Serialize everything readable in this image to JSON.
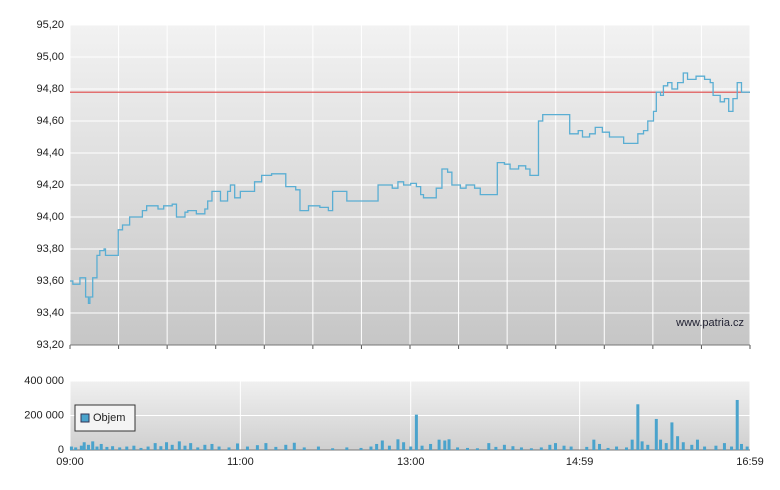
{
  "chart_data": [
    {
      "type": "line",
      "x": [
        "09:00",
        "09:02",
        "09:07",
        "09:11",
        "09:13",
        "09:14",
        "09:16",
        "09:19",
        "09:21",
        "09:24",
        "09:25",
        "09:34",
        "09:37",
        "09:42",
        "09:51",
        "09:54",
        "10:02",
        "10:06",
        "10:12",
        "10:15",
        "10:21",
        "10:23",
        "10:29",
        "10:35",
        "10:37",
        "10:40",
        "10:46",
        "10:51",
        "10:53",
        "10:56",
        "11:00",
        "11:07",
        "11:10",
        "11:15",
        "11:22",
        "11:30",
        "11:32",
        "11:36",
        "11:39",
        "11:42",
        "11:48",
        "11:56",
        "12:02",
        "12:05",
        "12:10",
        "12:15",
        "12:24",
        "12:35",
        "12:37",
        "12:43",
        "12:47",
        "12:51",
        "12:55",
        "13:00",
        "13:04",
        "13:07",
        "13:09",
        "13:18",
        "13:22",
        "13:26",
        "13:29",
        "13:35",
        "13:39",
        "13:45",
        "13:49",
        "13:59",
        "14:01",
        "14:06",
        "14:10",
        "14:16",
        "14:21",
        "14:24",
        "14:28",
        "14:30",
        "14:33",
        "14:45",
        "14:51",
        "14:52",
        "14:58",
        "15:01",
        "15:06",
        "15:10",
        "15:15",
        "15:20",
        "15:26",
        "15:30",
        "15:36",
        "15:40",
        "15:44",
        "15:47",
        "15:51",
        "15:53",
        "15:56",
        "15:58",
        "16:01",
        "16:04",
        "16:08",
        "16:12",
        "16:15",
        "16:21",
        "16:27",
        "16:31",
        "16:33",
        "16:38",
        "16:41",
        "16:44",
        "16:47",
        "16:50",
        "16:53",
        "16:59"
      ],
      "values": [
        93.6,
        93.58,
        93.62,
        93.5,
        93.46,
        93.5,
        93.62,
        93.76,
        93.79,
        93.8,
        93.76,
        93.92,
        93.95,
        94.0,
        94.04,
        94.07,
        94.05,
        94.07,
        94.08,
        94.0,
        94.03,
        94.04,
        94.02,
        94.05,
        94.1,
        94.16,
        94.1,
        94.16,
        94.2,
        94.12,
        94.16,
        94.16,
        94.22,
        94.26,
        94.27,
        94.27,
        94.19,
        94.19,
        94.17,
        94.04,
        94.07,
        94.06,
        94.04,
        94.16,
        94.16,
        94.1,
        94.1,
        94.1,
        94.2,
        94.2,
        94.18,
        94.22,
        94.2,
        94.21,
        94.19,
        94.14,
        94.12,
        94.18,
        94.3,
        94.28,
        94.2,
        94.18,
        94.2,
        94.18,
        94.14,
        94.14,
        94.34,
        94.33,
        94.3,
        94.32,
        94.3,
        94.26,
        94.26,
        94.6,
        94.64,
        94.64,
        94.64,
        94.52,
        94.54,
        94.5,
        94.52,
        94.56,
        94.53,
        94.5,
        94.5,
        94.46,
        94.46,
        94.52,
        94.54,
        94.6,
        94.66,
        94.78,
        94.76,
        94.82,
        94.84,
        94.8,
        94.84,
        94.9,
        94.86,
        94.88,
        94.86,
        94.84,
        94.76,
        94.72,
        94.74,
        94.66,
        94.74,
        94.84,
        94.78,
        94.78
      ],
      "color": "#5aaed3",
      "reference_line": {
        "value": 94.78,
        "color": "#e04848"
      },
      "xlim": [
        "09:00",
        "16:59"
      ],
      "ylim": [
        93.2,
        95.2
      ],
      "yticks": [
        {
          "value": 93.2,
          "label": "93,20"
        },
        {
          "value": 93.4,
          "label": "93,40"
        },
        {
          "value": 93.6,
          "label": "93,60"
        },
        {
          "value": 93.8,
          "label": "93,80"
        },
        {
          "value": 94.0,
          "label": "94,00"
        },
        {
          "value": 94.2,
          "label": "94,20"
        },
        {
          "value": 94.4,
          "label": "94,40"
        },
        {
          "value": 94.6,
          "label": "94,60"
        },
        {
          "value": 94.8,
          "label": "94,80"
        },
        {
          "value": 95.0,
          "label": "95,00"
        },
        {
          "value": 95.2,
          "label": "95,20"
        }
      ],
      "annotation": "www.patria.cz",
      "grid": true
    },
    {
      "type": "bar",
      "x": [
        "09:01",
        "09:04",
        "09:08",
        "09:10",
        "09:13",
        "09:16",
        "09:19",
        "09:22",
        "09:26",
        "09:30",
        "09:35",
        "09:40",
        "09:45",
        "09:50",
        "09:55",
        "10:00",
        "10:04",
        "10:08",
        "10:12",
        "10:17",
        "10:21",
        "10:25",
        "10:30",
        "10:35",
        "10:40",
        "10:45",
        "10:52",
        "10:58",
        "11:05",
        "11:12",
        "11:18",
        "11:25",
        "11:32",
        "11:38",
        "11:45",
        "11:55",
        "12:05",
        "12:15",
        "12:25",
        "12:32",
        "12:36",
        "12:40",
        "12:45",
        "12:51",
        "12:55",
        "13:00",
        "13:04",
        "13:08",
        "13:14",
        "13:20",
        "13:24",
        "13:27",
        "13:33",
        "13:40",
        "13:47",
        "13:55",
        "14:00",
        "14:06",
        "14:12",
        "14:18",
        "14:25",
        "14:32",
        "14:38",
        "14:42",
        "14:48",
        "14:53",
        "15:04",
        "15:09",
        "15:13",
        "15:19",
        "15:25",
        "15:32",
        "15:36",
        "15:40",
        "15:43",
        "15:47",
        "15:53",
        "15:56",
        "16:00",
        "16:04",
        "16:08",
        "16:12",
        "16:18",
        "16:22",
        "16:27",
        "16:35",
        "16:41",
        "16:46",
        "16:50",
        "16:53",
        "16:57"
      ],
      "series": [
        {
          "name": "Objem",
          "color": "#4aa3cc",
          "values": [
            20000,
            15000,
            25000,
            45000,
            30000,
            50000,
            20000,
            35000,
            18000,
            22000,
            15000,
            20000,
            25000,
            12000,
            20000,
            40000,
            22000,
            45000,
            30000,
            50000,
            25000,
            40000,
            15000,
            30000,
            35000,
            20000,
            15000,
            38000,
            20000,
            28000,
            40000,
            18000,
            30000,
            42000,
            15000,
            20000,
            10000,
            15000,
            12000,
            20000,
            35000,
            55000,
            25000,
            62000,
            45000,
            20000,
            205000,
            25000,
            35000,
            60000,
            55000,
            62000,
            15000,
            12000,
            10000,
            40000,
            18000,
            30000,
            22000,
            15000,
            10000,
            15000,
            30000,
            40000,
            25000,
            20000,
            18000,
            60000,
            35000,
            12000,
            20000,
            15000,
            60000,
            265000,
            50000,
            30000,
            180000,
            60000,
            40000,
            160000,
            80000,
            45000,
            30000,
            60000,
            20000,
            25000,
            40000,
            20000,
            290000,
            35000,
            20000
          ]
        }
      ],
      "xlim": [
        "09:00",
        "16:59"
      ],
      "xticks": [
        "09:00",
        "11:00",
        "13:00",
        "14:59",
        "16:59"
      ],
      "ylim": [
        0,
        400000
      ],
      "yticks": [
        0,
        {
          "value": 200000,
          "label": "200 000"
        },
        {
          "value": 400000,
          "label": "400 000"
        }
      ],
      "legend": "left",
      "grid": true
    }
  ]
}
